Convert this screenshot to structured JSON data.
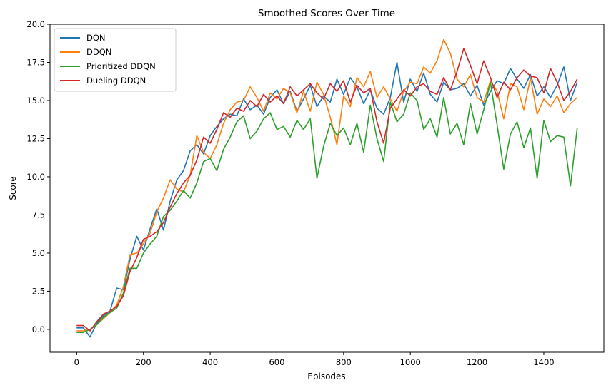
{
  "chart_data": {
    "type": "line",
    "title": "Smoothed Scores Over Time",
    "xlabel": "Episodes",
    "ylabel": "Score",
    "xlim": [
      -80,
      1580
    ],
    "ylim": [
      -1.5,
      20.0
    ],
    "xticks": [
      0,
      200,
      400,
      600,
      800,
      1000,
      1200,
      1400
    ],
    "yticks": [
      0.0,
      2.5,
      5.0,
      7.5,
      10.0,
      12.5,
      15.0,
      17.5,
      20.0
    ],
    "ytick_labels": [
      "0.0",
      "2.5",
      "5.0",
      "7.5",
      "10.0",
      "12.5",
      "15.0",
      "17.5",
      "20.0"
    ],
    "grid": false,
    "legend_position": "upper-left",
    "series": [
      {
        "name": "DQN",
        "color": "#1f77b4",
        "x": [
          0,
          20,
          40,
          60,
          80,
          100,
          120,
          140,
          160,
          180,
          200,
          220,
          240,
          260,
          280,
          300,
          320,
          340,
          360,
          380,
          400,
          420,
          440,
          460,
          480,
          500,
          520,
          540,
          560,
          580,
          600,
          620,
          640,
          660,
          680,
          700,
          720,
          740,
          760,
          780,
          800,
          820,
          840,
          860,
          880,
          900,
          920,
          940,
          960,
          980,
          1000,
          1020,
          1040,
          1060,
          1080,
          1100,
          1120,
          1140,
          1160,
          1180,
          1200,
          1220,
          1240,
          1260,
          1280,
          1300,
          1320,
          1340,
          1360,
          1380,
          1400,
          1420,
          1440,
          1460,
          1480,
          1500
        ],
        "y": [
          0.1,
          0.1,
          -0.5,
          0.4,
          0.9,
          1.2,
          2.7,
          2.6,
          4.6,
          6.1,
          5.2,
          6.6,
          7.9,
          6.5,
          8.4,
          9.8,
          10.4,
          11.7,
          12.1,
          11.5,
          12.7,
          13.3,
          13.8,
          14.1,
          14.0,
          15.1,
          14.4,
          14.7,
          14.1,
          15.2,
          15.7,
          14.8,
          15.6,
          14.3,
          15.1,
          16.0,
          14.6,
          15.3,
          14.9,
          16.4,
          15.4,
          16.5,
          15.9,
          14.8,
          15.7,
          14.5,
          14.1,
          15.2,
          17.5,
          14.9,
          16.4,
          15.6,
          16.8,
          15.4,
          14.9,
          16.2,
          15.7,
          15.8,
          16.1,
          15.3,
          16.0,
          14.7,
          15.6,
          16.3,
          16.1,
          17.1,
          16.4,
          15.8,
          16.7,
          15.3,
          15.9,
          15.2,
          16.0,
          17.2,
          15.0,
          16.2
        ]
      },
      {
        "name": "DDQN",
        "color": "#ff7f0e",
        "x": [
          0,
          20,
          40,
          60,
          80,
          100,
          120,
          140,
          160,
          180,
          200,
          220,
          240,
          260,
          280,
          300,
          320,
          340,
          360,
          380,
          400,
          420,
          440,
          460,
          480,
          500,
          520,
          540,
          560,
          580,
          600,
          620,
          640,
          660,
          680,
          700,
          720,
          740,
          760,
          780,
          800,
          820,
          840,
          860,
          880,
          900,
          920,
          940,
          960,
          980,
          1000,
          1020,
          1040,
          1060,
          1080,
          1100,
          1120,
          1140,
          1160,
          1180,
          1200,
          1220,
          1240,
          1260,
          1280,
          1300,
          1320,
          1340,
          1360,
          1380,
          1400,
          1420,
          1440,
          1460,
          1480,
          1500
        ],
        "y": [
          -0.1,
          -0.1,
          0.0,
          0.3,
          0.7,
          1.1,
          1.6,
          2.8,
          4.9,
          5.0,
          5.6,
          6.3,
          7.7,
          8.6,
          9.8,
          9.2,
          9.0,
          10.1,
          12.7,
          11.6,
          11.2,
          12.1,
          13.5,
          14.4,
          14.9,
          15.0,
          15.9,
          15.2,
          14.3,
          15.5,
          15.1,
          15.8,
          15.5,
          14.2,
          15.6,
          14.3,
          16.2,
          15.4,
          13.9,
          12.1,
          15.3,
          14.6,
          16.5,
          15.9,
          16.9,
          15.2,
          15.9,
          15.1,
          14.3,
          15.6,
          16.2,
          16.1,
          17.2,
          16.8,
          17.6,
          19.0,
          18.1,
          16.4,
          15.9,
          16.7,
          15.2,
          14.9,
          16.3,
          15.6,
          13.8,
          16.1,
          15.9,
          14.4,
          16.5,
          14.1,
          15.1,
          14.6,
          15.3,
          14.2,
          14.8,
          15.2
        ]
      },
      {
        "name": "Prioritized DDQN",
        "color": "#2ca02c",
        "x": [
          0,
          20,
          40,
          60,
          80,
          100,
          120,
          140,
          160,
          180,
          200,
          220,
          240,
          260,
          280,
          300,
          320,
          340,
          360,
          380,
          400,
          420,
          440,
          460,
          480,
          500,
          520,
          540,
          560,
          580,
          600,
          620,
          640,
          660,
          680,
          700,
          720,
          740,
          760,
          780,
          800,
          820,
          840,
          860,
          880,
          900,
          920,
          940,
          960,
          980,
          1000,
          1020,
          1040,
          1060,
          1080,
          1100,
          1120,
          1140,
          1160,
          1180,
          1200,
          1220,
          1240,
          1260,
          1280,
          1300,
          1320,
          1340,
          1360,
          1380,
          1400,
          1420,
          1440,
          1460,
          1480,
          1500
        ],
        "y": [
          -0.2,
          -0.2,
          0.0,
          0.3,
          0.8,
          1.1,
          1.4,
          2.4,
          4.0,
          4.0,
          5.0,
          5.6,
          6.1,
          7.4,
          7.8,
          8.4,
          9.1,
          8.6,
          9.6,
          11.0,
          11.2,
          10.4,
          11.8,
          12.6,
          13.6,
          14.0,
          12.5,
          13.0,
          13.8,
          14.2,
          13.1,
          13.3,
          12.6,
          13.7,
          13.1,
          13.8,
          9.9,
          12.0,
          13.5,
          12.7,
          13.2,
          12.1,
          13.5,
          11.6,
          14.7,
          12.5,
          11.0,
          14.9,
          13.6,
          14.1,
          15.5,
          15.0,
          13.1,
          13.8,
          12.6,
          15.2,
          12.8,
          13.5,
          12.1,
          14.8,
          12.8,
          14.4,
          16.2,
          13.4,
          10.5,
          12.8,
          13.6,
          11.9,
          13.2,
          9.9,
          13.7,
          12.3,
          12.7,
          12.6,
          9.4,
          13.2
        ]
      },
      {
        "name": "Dueling DDQN",
        "color": "#d62728",
        "x": [
          0,
          20,
          40,
          60,
          80,
          100,
          120,
          140,
          160,
          180,
          200,
          220,
          240,
          260,
          280,
          300,
          320,
          340,
          360,
          380,
          400,
          420,
          440,
          460,
          480,
          500,
          520,
          540,
          560,
          580,
          600,
          620,
          640,
          660,
          680,
          700,
          720,
          740,
          760,
          780,
          800,
          820,
          840,
          860,
          880,
          900,
          920,
          940,
          960,
          980,
          1000,
          1020,
          1040,
          1060,
          1080,
          1100,
          1120,
          1140,
          1160,
          1180,
          1200,
          1220,
          1240,
          1260,
          1280,
          1300,
          1320,
          1340,
          1360,
          1380,
          1400,
          1420,
          1440,
          1460,
          1480,
          1500
        ],
        "y": [
          0.25,
          0.25,
          -0.1,
          0.5,
          1.0,
          1.2,
          1.5,
          2.2,
          3.8,
          4.7,
          5.9,
          6.1,
          6.4,
          7.0,
          8.0,
          8.9,
          9.6,
          10.1,
          11.1,
          12.6,
          12.2,
          13.1,
          14.2,
          13.9,
          14.5,
          14.3,
          15.0,
          14.6,
          15.4,
          14.9,
          15.3,
          14.8,
          15.9,
          15.3,
          15.7,
          16.1,
          15.5,
          15.1,
          16.1,
          15.6,
          16.3,
          14.9,
          16.0,
          15.5,
          15.8,
          13.6,
          12.2,
          14.5,
          15.1,
          15.7,
          15.3,
          15.9,
          16.1,
          15.6,
          15.4,
          16.5,
          15.7,
          16.9,
          18.4,
          17.3,
          16.1,
          17.6,
          16.5,
          15.2,
          16.2,
          15.7,
          16.5,
          17.0,
          16.6,
          16.5,
          15.5,
          17.1,
          16.2,
          15.0,
          15.6,
          16.4
        ]
      }
    ]
  }
}
